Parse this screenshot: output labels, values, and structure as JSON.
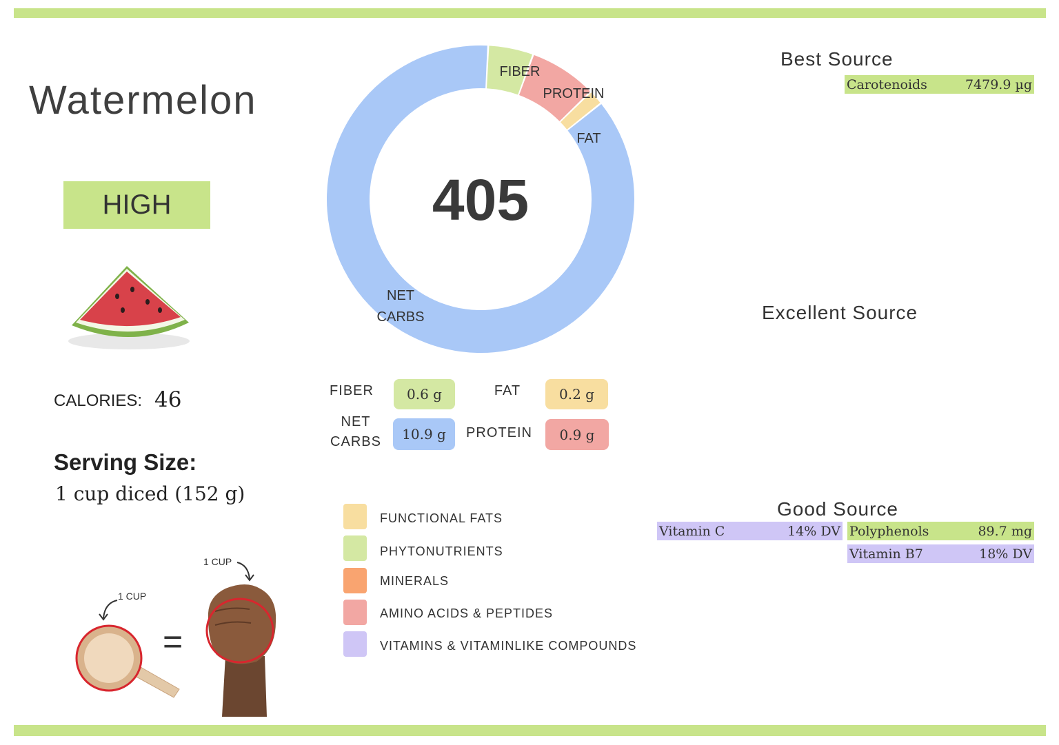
{
  "food": {
    "name": "Watermelon",
    "rating": "HIGH",
    "calories_label": "CALORIES:",
    "calories_value": "46",
    "serving_title": "Serving Size:",
    "serving_value": "1 cup diced (152 g)",
    "cup_label": "1 CUP",
    "fist_label": "1 CUP",
    "equals": "="
  },
  "chart_data": {
    "type": "pie",
    "center_value": "405",
    "slices": [
      {
        "label": "FIBER",
        "value": 0.6,
        "color": "#d4e8a3"
      },
      {
        "label": "PROTEIN",
        "value": 0.9,
        "color": "#f2a7a3"
      },
      {
        "label": "FAT",
        "value": 0.2,
        "color": "#f8dea0"
      },
      {
        "label": "NET CARBS",
        "value": 10.9,
        "color": "#a9c8f7"
      }
    ],
    "slice_labels": {
      "fiber": "FIBER",
      "protein": "PROTEIN",
      "fat": "FAT",
      "net_carbs_line1": "NET",
      "net_carbs_line2": "CARBS"
    }
  },
  "macros": {
    "fiber": {
      "label": "FIBER",
      "value": "0.6 g",
      "color": "#d4e8a3"
    },
    "fat": {
      "label": "FAT",
      "value": "0.2 g",
      "color": "#f8dea0"
    },
    "net_carbs": {
      "label_line1": "NET",
      "label_line2": "CARBS",
      "value": "10.9 g",
      "color": "#a9c8f7"
    },
    "protein": {
      "label": "PROTEIN",
      "value": "0.9 g",
      "color": "#f2a7a3"
    }
  },
  "legend": [
    {
      "label": "FUNCTIONAL  FATS",
      "color": "#f8dea0"
    },
    {
      "label": "PHYTONUTRIENTS",
      "color": "#d4e8a3"
    },
    {
      "label": "MINERALS",
      "color": "#f9a470"
    },
    {
      "label": "AMINO ACIDS & PEPTIDES",
      "color": "#f2a7a3"
    },
    {
      "label": "VITAMINS & VITAMINLIKE COMPOUNDS",
      "color": "#cfc6f6"
    }
  ],
  "sources": {
    "best_title": "Best Source",
    "best": [
      {
        "name": "Carotenoids",
        "value": "7479.9 µg",
        "color": "#c8e48a"
      }
    ],
    "excellent_title": "Excellent Source",
    "good_title": "Good Source",
    "good_left": [
      {
        "name": "Vitamin C",
        "value": "14% DV",
        "color": "#cfc6f6"
      }
    ],
    "good_right": [
      {
        "name": "Polyphenols",
        "value": "89.7 mg",
        "color": "#c8e48a"
      },
      {
        "name": "Vitamin B7",
        "value": "18% DV",
        "color": "#cfc6f6"
      }
    ]
  },
  "colors": {
    "brand_green": "#c8e48a",
    "watermelon_red": "#d8424a",
    "rind_green": "#7fb24a"
  }
}
